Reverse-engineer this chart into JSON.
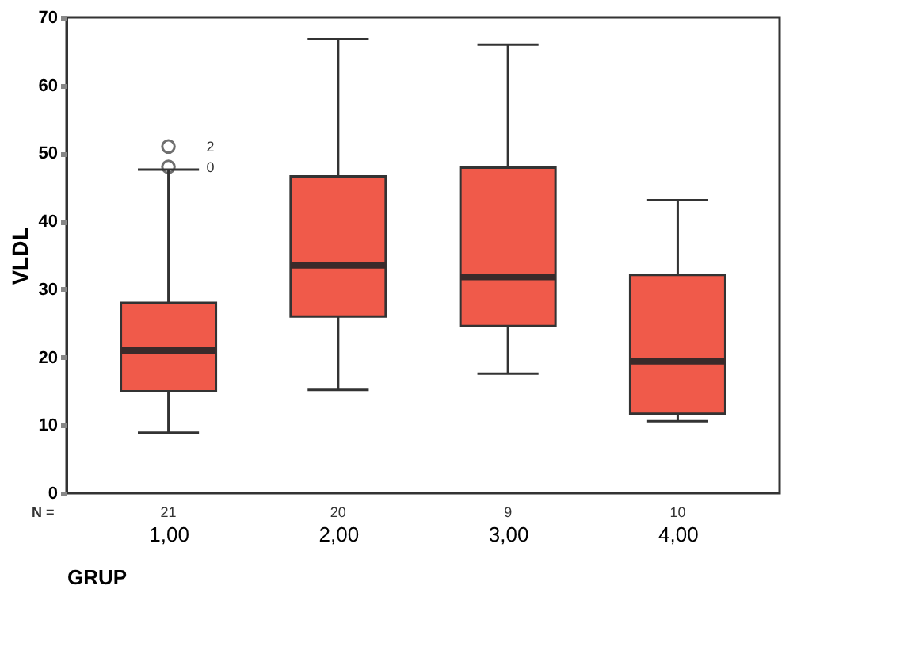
{
  "chart_data": {
    "type": "box",
    "xlabel": "GRUP",
    "ylabel": "VLDL",
    "categories": [
      "1,00",
      "2,00",
      "3,00",
      "4,00"
    ],
    "boxes": [
      {
        "low": 8.9,
        "q1": 15.0,
        "median": 21.0,
        "q3": 28.0,
        "high": 47.6,
        "outliers": [
          51,
          48
        ]
      },
      {
        "low": 15.2,
        "q1": 26.0,
        "median": 33.5,
        "q3": 46.6,
        "high": 66.8
      },
      {
        "low": 17.6,
        "q1": 24.6,
        "median": 31.8,
        "q3": 47.9,
        "high": 66.0
      },
      {
        "low": 10.6,
        "q1": 11.7,
        "median": 19.4,
        "q3": 32.1,
        "high": 43.1
      }
    ],
    "color": "#f05a4a",
    "ylim": [
      0,
      70
    ],
    "yticks": [
      0,
      10,
      20,
      30,
      40,
      50,
      60,
      70
    ],
    "grid": false,
    "annotations": [
      "2",
      "0",
      "N =",
      "21",
      "20",
      "9",
      "10"
    ]
  }
}
